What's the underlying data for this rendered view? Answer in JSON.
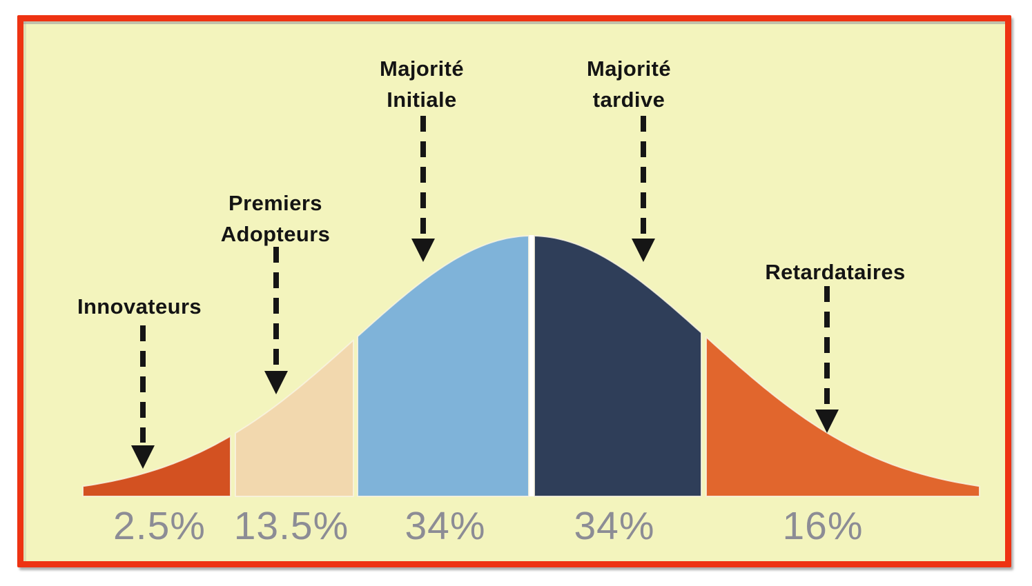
{
  "chart_data": {
    "type": "area",
    "curve_shape": "normal-bell",
    "categories": [
      "Innovateurs",
      "Premiers Adopteurs",
      "Majorité Initiale",
      "Majorité tardive",
      "Retardataires"
    ],
    "values": [
      2.5,
      13.5,
      34,
      34,
      16
    ],
    "value_labels": [
      "2.5%",
      "13.5%",
      "34%",
      "34%",
      "16%"
    ],
    "segment_colors": [
      "#d35121",
      "#f2d8ae",
      "#7fb3d9",
      "#2f3e59",
      "#e1662d"
    ],
    "divider_color": "#ffffff",
    "background_color": "#f3f4bd",
    "frame_border_color": "#ee3312",
    "annotation_text_color": "#141414",
    "value_label_color": "#8c8c95",
    "legend_position": "none",
    "grid": false
  },
  "segments": [
    {
      "name": "Innovateurs",
      "label_lines": [
        "Innovateurs"
      ],
      "value_label": "2.5%",
      "color": "#d35121"
    },
    {
      "name": "Premiers Adopteurs",
      "label_lines": [
        "Premiers",
        "Adopteurs"
      ],
      "value_label": "13.5%",
      "color": "#f2d8ae"
    },
    {
      "name": "Majorité Initiale",
      "label_lines": [
        "Majorité",
        "Initiale"
      ],
      "value_label": "34%",
      "color": "#7fb3d9"
    },
    {
      "name": "Majorité tardive",
      "label_lines": [
        "Majorité",
        "tardive"
      ],
      "value_label": "34%",
      "color": "#2f3e59"
    },
    {
      "name": "Retardataires",
      "label_lines": [
        "Retardataires"
      ],
      "value_label": "16%",
      "color": "#e1662d"
    }
  ]
}
